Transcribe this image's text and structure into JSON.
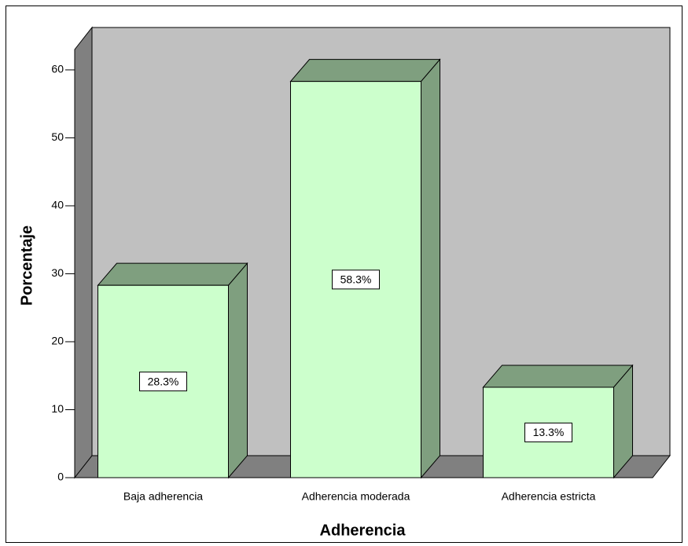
{
  "chart_data": {
    "type": "bar3d",
    "x_label": "Adherencia",
    "y_label": "Porcentaje",
    "categories": [
      "Baja adherencia",
      "Adherencia moderada",
      "Adherencia estricta"
    ],
    "values": [
      28.3,
      58.3,
      13.3
    ],
    "value_labels": [
      "28.3%",
      "58.3%",
      "13.3%"
    ],
    "color": "#ccffcc",
    "ylim": [
      0,
      63
    ],
    "yticks": [
      0,
      10,
      20,
      30,
      40,
      50,
      60
    ]
  }
}
